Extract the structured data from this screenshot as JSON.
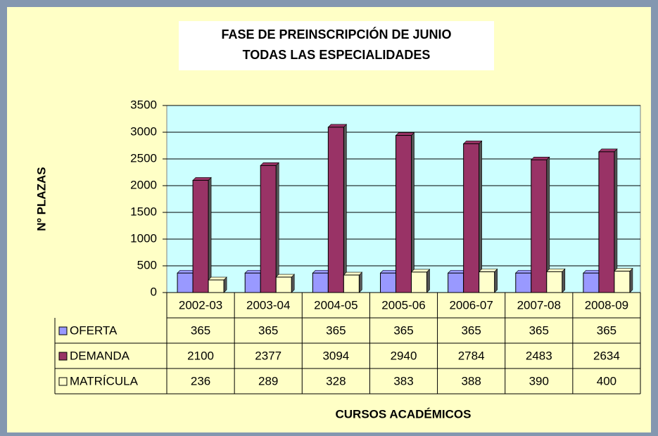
{
  "chart_data": {
    "type": "bar",
    "title": [
      "FASE DE PREINSCRIPCIÓN DE JUNIO",
      "TODAS LAS ESPECIALIDADES"
    ],
    "x_label": "CURSOS ACADÉMICOS",
    "y_label": "Nº PLAZAS",
    "categories": [
      "2002-03",
      "2003-04",
      "2004-05",
      "2005-06",
      "2006-07",
      "2007-08",
      "2008-09"
    ],
    "series": [
      {
        "name": "OFERTA",
        "color": "#9999ff",
        "values": [
          365,
          365,
          365,
          365,
          365,
          365,
          365
        ]
      },
      {
        "name": "DEMANDA",
        "color": "#993366",
        "values": [
          2100,
          2377,
          3094,
          2940,
          2784,
          2483,
          2634
        ]
      },
      {
        "name": "MATRÍCULA",
        "color": "#ffffcc",
        "values": [
          236,
          289,
          328,
          383,
          388,
          390,
          400
        ]
      }
    ],
    "ylim": [
      0,
      3500
    ],
    "yticks": [
      0,
      500,
      1000,
      1500,
      2000,
      2500,
      3000,
      3500
    ],
    "grid": true
  }
}
